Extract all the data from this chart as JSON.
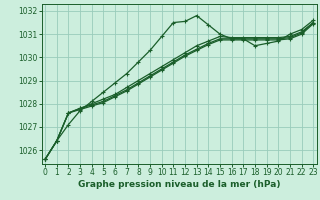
{
  "title": "Graphe pression niveau de la mer (hPa)",
  "background_color": "#cceedd",
  "grid_color": "#99ccbb",
  "line_color": "#1a5e2a",
  "x_values": [
    0,
    1,
    2,
    3,
    4,
    5,
    6,
    7,
    8,
    9,
    10,
    11,
    12,
    13,
    14,
    15,
    16,
    17,
    18,
    19,
    20,
    21,
    22,
    23
  ],
  "series": [
    [
      1025.6,
      1026.4,
      1027.1,
      1027.7,
      1028.1,
      1028.5,
      1028.9,
      1029.3,
      1029.8,
      1030.3,
      1030.9,
      1031.5,
      1031.55,
      1031.8,
      1031.4,
      1031.0,
      1030.8,
      1030.8,
      1030.5,
      1030.6,
      1030.7,
      1031.0,
      1031.2,
      1031.6
    ],
    [
      1025.6,
      1026.4,
      1027.6,
      1027.8,
      1028.0,
      1028.2,
      1028.4,
      1028.7,
      1029.0,
      1029.3,
      1029.6,
      1029.9,
      1030.2,
      1030.5,
      1030.7,
      1030.9,
      1030.85,
      1030.85,
      1030.85,
      1030.85,
      1030.85,
      1030.9,
      1031.1,
      1031.5
    ],
    [
      1025.6,
      1026.4,
      1027.6,
      1027.8,
      1027.95,
      1028.1,
      1028.35,
      1028.6,
      1028.9,
      1029.2,
      1029.5,
      1029.8,
      1030.1,
      1030.35,
      1030.6,
      1030.8,
      1030.8,
      1030.8,
      1030.8,
      1030.8,
      1030.8,
      1030.85,
      1031.05,
      1031.5
    ],
    [
      1025.6,
      1026.4,
      1027.6,
      1027.75,
      1027.9,
      1028.05,
      1028.3,
      1028.55,
      1028.85,
      1029.15,
      1029.45,
      1029.75,
      1030.05,
      1030.3,
      1030.55,
      1030.75,
      1030.75,
      1030.75,
      1030.75,
      1030.75,
      1030.75,
      1030.8,
      1031.0,
      1031.45
    ]
  ],
  "ylim": [
    1025.4,
    1032.3
  ],
  "yticks": [
    1026,
    1027,
    1028,
    1029,
    1030,
    1031,
    1032
  ],
  "xlim": [
    -0.3,
    23.3
  ],
  "xticks": [
    0,
    1,
    2,
    3,
    4,
    5,
    6,
    7,
    8,
    9,
    10,
    11,
    12,
    13,
    14,
    15,
    16,
    17,
    18,
    19,
    20,
    21,
    22,
    23
  ],
  "tick_fontsize": 5.5,
  "title_fontsize": 6.5,
  "marker": "+",
  "markersize": 3.5,
  "linewidth": 0.9
}
